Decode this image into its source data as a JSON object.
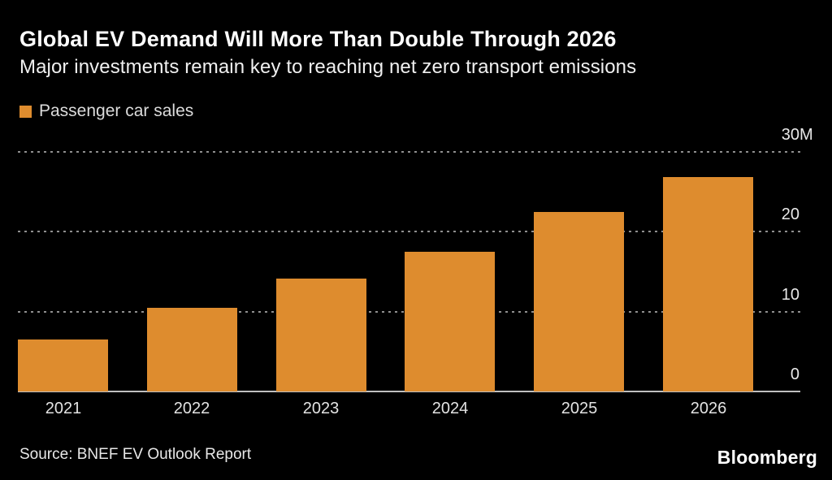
{
  "header": {
    "title": "Global EV Demand Will More Than Double Through 2026",
    "subtitle": "Major investments remain key to reaching net zero transport emissions"
  },
  "legend": {
    "label": "Passenger car sales",
    "swatch_color": "#DE8C2E"
  },
  "source": {
    "text": "Source: BNEF EV Outlook Report"
  },
  "footer": {
    "logo": "Bloomberg"
  },
  "colors": {
    "background": "#000000",
    "bar": "#DE8C2E",
    "gridline": "#8F8F8F",
    "axis_line": "#BFBFBF",
    "title_text": "#FFFFFF",
    "body_text": "#E6E6E6"
  },
  "chart_data": {
    "type": "bar",
    "title": "Global EV Demand Will More Than Double Through 2026",
    "subtitle": "Major investments remain key to reaching net zero transport emissions",
    "series_name": "Passenger car sales",
    "categories": [
      "2021",
      "2022",
      "2023",
      "2024",
      "2025",
      "2026"
    ],
    "values": [
      6.5,
      10.5,
      14.1,
      17.5,
      22.4,
      26.8
    ],
    "unit": "M",
    "xlabel": "",
    "ylabel": "",
    "ylim": [
      0,
      30
    ],
    "yticks": [
      {
        "value": 0,
        "label": "0"
      },
      {
        "value": 10,
        "label": "10"
      },
      {
        "value": 20,
        "label": "20"
      },
      {
        "value": 30,
        "label": "30M"
      }
    ],
    "ytick_position": "right",
    "grid": "horizontal-dotted",
    "legend_position": "top-left",
    "bar_color": "#DE8C2E"
  }
}
